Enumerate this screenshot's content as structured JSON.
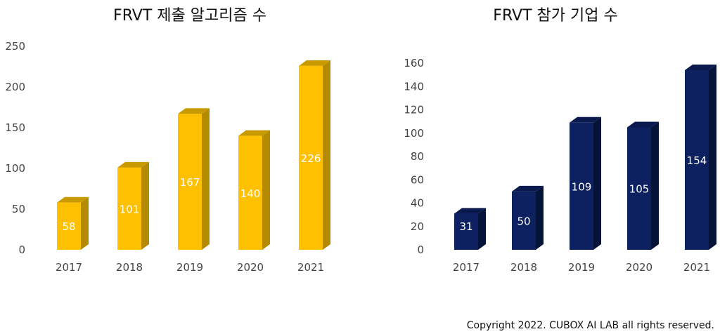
{
  "charts": [
    {
      "title": "FRVT 제출 알고리즘 수",
      "type": "bar",
      "categories": [
        "2017",
        "2018",
        "2019",
        "2020",
        "2021"
      ],
      "values": [
        58,
        101,
        167,
        140,
        226
      ],
      "ylim": [
        0,
        250
      ],
      "yticks": [
        0,
        50,
        100,
        150,
        200,
        250
      ],
      "colors": {
        "front": "#FFC000",
        "side": "#B48A00",
        "top": "#C89A00"
      },
      "grid": false
    },
    {
      "title": "FRVT 참가 기업 수",
      "type": "bar",
      "categories": [
        "2017",
        "2018",
        "2019",
        "2020",
        "2021"
      ],
      "values": [
        31,
        50,
        109,
        105,
        154
      ],
      "ylim": [
        0,
        160
      ],
      "yticks": [
        0,
        20,
        40,
        60,
        80,
        100,
        120,
        140,
        160
      ],
      "colors": {
        "front": "#0D2160",
        "side": "#061338",
        "top": "#0A1A4E"
      },
      "grid": false
    }
  ],
  "chart_data": [
    {
      "type": "bar",
      "title": "FRVT 제출 알고리즘 수",
      "categories": [
        "2017",
        "2018",
        "2019",
        "2020",
        "2021"
      ],
      "values": [
        58,
        101,
        167,
        140,
        226
      ],
      "ylim": [
        0,
        250
      ],
      "grid": false
    },
    {
      "type": "bar",
      "title": "FRVT 참가 기업 수",
      "categories": [
        "2017",
        "2018",
        "2019",
        "2020",
        "2021"
      ],
      "values": [
        31,
        50,
        109,
        105,
        154
      ],
      "ylim": [
        0,
        160
      ],
      "grid": false
    }
  ],
  "footer": "Copyright 2022. CUBOX AI LAB all rights reserved."
}
